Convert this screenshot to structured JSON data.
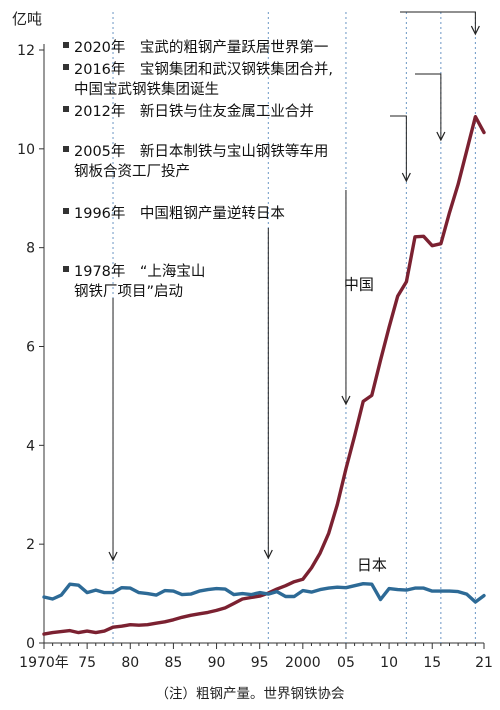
{
  "chart_data": {
    "type": "line",
    "unit": "亿吨",
    "ylim": [
      0,
      12
    ],
    "yticks": [
      0,
      2,
      4,
      6,
      8,
      10,
      12
    ],
    "xlim": [
      1970,
      2021
    ],
    "xticks": [
      1970,
      1975,
      1980,
      1985,
      1990,
      1995,
      2000,
      2005,
      2010,
      2015,
      2021
    ],
    "xtick_labels": [
      "1970年",
      "75",
      "80",
      "85",
      "90",
      "95",
      "2000",
      "05",
      "10",
      "15",
      "21"
    ],
    "grid": false,
    "series": [
      {
        "name": "中国",
        "color": "#7b2131",
        "x": [
          1970,
          1971,
          1972,
          1973,
          1974,
          1975,
          1976,
          1977,
          1978,
          1979,
          1980,
          1981,
          1982,
          1983,
          1984,
          1985,
          1986,
          1987,
          1988,
          1989,
          1990,
          1991,
          1992,
          1993,
          1994,
          1995,
          1996,
          1997,
          1998,
          1999,
          2000,
          2001,
          2002,
          2003,
          2004,
          2005,
          2006,
          2007,
          2008,
          2009,
          2010,
          2011,
          2012,
          2013,
          2014,
          2015,
          2016,
          2017,
          2018,
          2019,
          2020,
          2021
        ],
        "values": [
          0.18,
          0.21,
          0.23,
          0.25,
          0.21,
          0.24,
          0.21,
          0.24,
          0.32,
          0.34,
          0.37,
          0.36,
          0.37,
          0.4,
          0.43,
          0.47,
          0.52,
          0.56,
          0.59,
          0.62,
          0.66,
          0.71,
          0.8,
          0.89,
          0.92,
          0.95,
          1.01,
          1.09,
          1.16,
          1.24,
          1.29,
          1.52,
          1.82,
          2.22,
          2.8,
          3.53,
          4.19,
          4.89,
          5.01,
          5.72,
          6.39,
          7.02,
          7.31,
          8.22,
          8.23,
          8.04,
          8.08,
          8.71,
          9.28,
          9.96,
          10.65,
          10.33
        ]
      },
      {
        "name": "日本",
        "color": "#2d6a96",
        "x": [
          1970,
          1971,
          1972,
          1973,
          1974,
          1975,
          1976,
          1977,
          1978,
          1979,
          1980,
          1981,
          1982,
          1983,
          1984,
          1985,
          1986,
          1987,
          1988,
          1989,
          1990,
          1991,
          1992,
          1993,
          1994,
          1995,
          1996,
          1997,
          1998,
          1999,
          2000,
          2001,
          2002,
          2003,
          2004,
          2005,
          2006,
          2007,
          2008,
          2009,
          2010,
          2011,
          2012,
          2013,
          2014,
          2015,
          2016,
          2017,
          2018,
          2019,
          2020,
          2021
        ],
        "values": [
          0.93,
          0.89,
          0.97,
          1.19,
          1.17,
          1.02,
          1.07,
          1.02,
          1.02,
          1.12,
          1.11,
          1.02,
          1.0,
          0.97,
          1.06,
          1.05,
          0.98,
          0.99,
          1.05,
          1.08,
          1.1,
          1.09,
          0.98,
          1.0,
          0.98,
          1.02,
          0.99,
          1.04,
          0.94,
          0.94,
          1.06,
          1.03,
          1.08,
          1.11,
          1.13,
          1.12,
          1.16,
          1.2,
          1.19,
          0.88,
          1.1,
          1.08,
          1.07,
          1.11,
          1.11,
          1.05,
          1.05,
          1.05,
          1.04,
          0.99,
          0.83,
          0.96
        ]
      }
    ],
    "annotations": [
      {
        "year": 2020,
        "lines": [
          "2020年　宝武的粗钢产量跃居世界第一"
        ]
      },
      {
        "year": 2016,
        "lines": [
          "2016年　宝钢集团和武汉钢铁集团合并,",
          "中国宝武钢铁集团诞生"
        ]
      },
      {
        "year": 2012,
        "lines": [
          "2012年　新日铁与住友金属工业合并"
        ]
      },
      {
        "year": 2005,
        "lines": [
          "2005年　新日本制铁与宝山钢铁等车用",
          "钢板合资工厂投产"
        ]
      },
      {
        "year": 1996,
        "lines": [
          "1996年　中国粗钢产量逆转日本"
        ]
      },
      {
        "year": 1978,
        "lines": [
          "1978年　“上海宝山",
          "钢铁厂项目”启动"
        ]
      }
    ],
    "source_note": "（注）粗钢产量。世界钢铁协会"
  }
}
